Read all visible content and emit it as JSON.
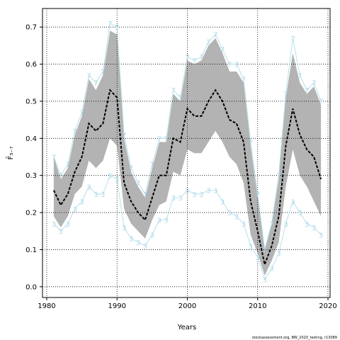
{
  "chart_data": {
    "type": "line",
    "x": [
      1981,
      1982,
      1983,
      1984,
      1985,
      1986,
      1987,
      1988,
      1989,
      1990,
      1991,
      1992,
      1993,
      1994,
      1995,
      1996,
      1997,
      1998,
      1999,
      2000,
      2001,
      2002,
      2003,
      2004,
      2005,
      2006,
      2007,
      2008,
      2009,
      2010,
      2011,
      2012,
      2013,
      2014,
      2015,
      2016,
      2017,
      2018,
      2019
    ],
    "band": {
      "color": "#b3b3b3",
      "upper": [
        0.35,
        0.29,
        0.32,
        0.41,
        0.46,
        0.56,
        0.53,
        0.57,
        0.69,
        0.68,
        0.4,
        0.31,
        0.27,
        0.24,
        0.32,
        0.39,
        0.39,
        0.52,
        0.5,
        0.61,
        0.6,
        0.61,
        0.65,
        0.67,
        0.63,
        0.58,
        0.58,
        0.55,
        0.38,
        0.24,
        0.1,
        0.17,
        0.29,
        0.51,
        0.63,
        0.55,
        0.52,
        0.54,
        0.49
      ],
      "lower": [
        0.19,
        0.16,
        0.19,
        0.25,
        0.27,
        0.34,
        0.32,
        0.34,
        0.4,
        0.38,
        0.21,
        0.17,
        0.15,
        0.13,
        0.18,
        0.22,
        0.23,
        0.31,
        0.3,
        0.37,
        0.36,
        0.36,
        0.39,
        0.42,
        0.39,
        0.35,
        0.33,
        0.28,
        0.14,
        0.09,
        0.03,
        0.07,
        0.12,
        0.27,
        0.37,
        0.3,
        0.27,
        0.23,
        0.19
      ]
    },
    "series": [
      {
        "label": "3",
        "color": "#a8d8e8",
        "values": [
          0.17,
          0.15,
          0.17,
          0.21,
          0.23,
          0.27,
          0.25,
          0.25,
          0.3,
          0.29,
          0.16,
          0.13,
          0.12,
          0.11,
          0.14,
          0.18,
          0.18,
          0.24,
          0.24,
          0.26,
          0.25,
          0.25,
          0.26,
          0.26,
          0.23,
          0.2,
          0.19,
          0.17,
          0.11,
          0.08,
          0.02,
          0.05,
          0.09,
          0.17,
          0.23,
          0.2,
          0.17,
          0.16,
          0.14
        ]
      },
      {
        "label": "7",
        "color": "#a8d8e8",
        "values": [
          0.35,
          0.3,
          0.33,
          0.42,
          0.47,
          0.57,
          0.55,
          0.58,
          0.71,
          0.7,
          0.41,
          0.32,
          0.28,
          0.25,
          0.33,
          0.4,
          0.4,
          0.53,
          0.51,
          0.62,
          0.61,
          0.62,
          0.66,
          0.68,
          0.64,
          0.6,
          0.6,
          0.56,
          0.39,
          0.25,
          0.1,
          0.17,
          0.3,
          0.52,
          0.67,
          0.57,
          0.53,
          0.55,
          0.5
        ]
      },
      {
        "color": "#000000",
        "values": [
          0.26,
          0.22,
          0.25,
          0.31,
          0.35,
          0.44,
          0.42,
          0.44,
          0.53,
          0.51,
          0.28,
          0.23,
          0.2,
          0.18,
          0.24,
          0.3,
          0.3,
          0.4,
          0.39,
          0.48,
          0.46,
          0.46,
          0.5,
          0.53,
          0.5,
          0.45,
          0.44,
          0.39,
          0.23,
          0.15,
          0.06,
          0.11,
          0.19,
          0.38,
          0.48,
          0.41,
          0.37,
          0.35,
          0.29
        ]
      }
    ],
    "xlabel": "Years",
    "ylabel": "F̄₃₋₇",
    "footer": "stockassessment.org, BW_2020_testing, r13089",
    "xlim": [
      1979.4,
      2020.3
    ],
    "ylim": [
      -0.029,
      0.75
    ],
    "xticks": [
      1980,
      1990,
      2000,
      2010,
      2020
    ],
    "yticks": [
      {
        "value": 0,
        "label": "0.0"
      },
      0.1,
      0.2,
      0.3,
      0.4,
      0.5,
      0.6,
      0.7
    ],
    "grid": true
  }
}
